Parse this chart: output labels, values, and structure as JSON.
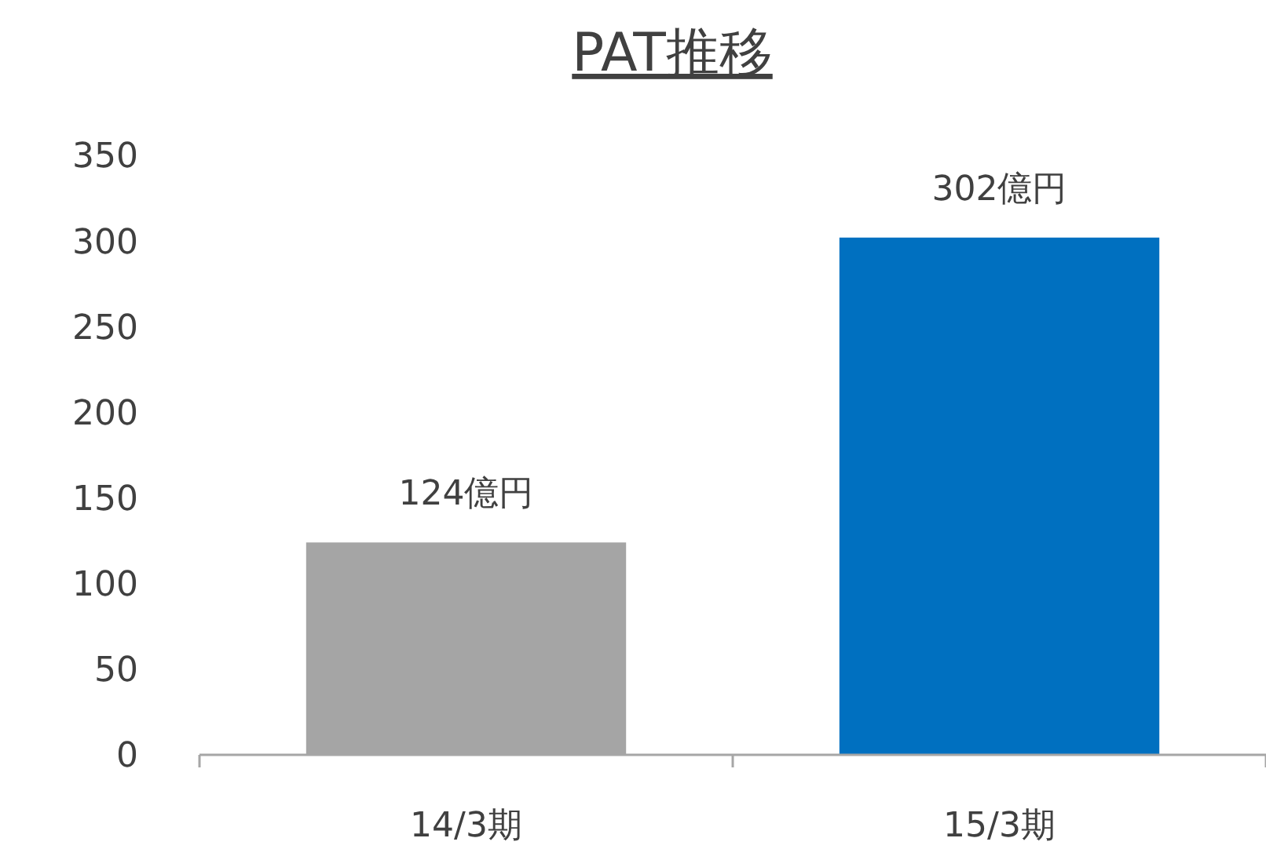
{
  "chart_data": {
    "type": "bar",
    "title": "PAT推移",
    "categories": [
      "14/3期",
      "15/3期"
    ],
    "values": [
      124,
      302
    ],
    "colors": [
      "#a5a5a5",
      "#0070c0"
    ],
    "value_labels": [
      "124億円",
      "302億円"
    ],
    "ylim": [
      0,
      350
    ],
    "yticks": [
      0,
      50,
      100,
      150,
      200,
      250,
      300,
      350
    ],
    "grid": false
  }
}
